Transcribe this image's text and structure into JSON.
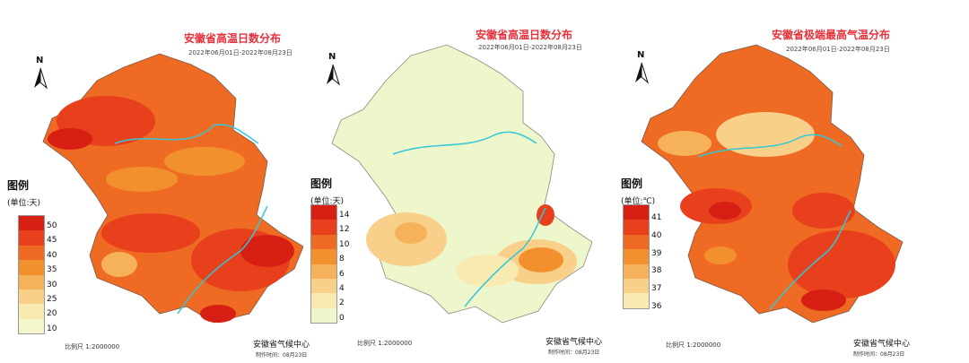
{
  "panels": [
    {
      "title": "安徽省高温日数分布",
      "date": "2022年06月01日-2022年08月23日",
      "legend_title": "图例",
      "unit": "(单位:天)",
      "ticks": [
        "50",
        "45",
        "40",
        "35",
        "30",
        "25",
        "20",
        "10"
      ],
      "colors": [
        "#d81f14",
        "#e8401c",
        "#ef6a22",
        "#f3902e",
        "#f6b25a",
        "#f8d08a",
        "#f8eab0",
        "#f5f6cc"
      ],
      "scale": "比例尺  1:2000000",
      "org": "安徽省气候中心",
      "made": "制作时间：08月23日"
    },
    {
      "title": "安徽省高温日数分布",
      "date": "2022年06月01日-2022年08月23日",
      "legend_title": "图例",
      "unit": "(单位:天)",
      "ticks": [
        "14",
        "12",
        "10",
        "8",
        "6",
        "4",
        "2",
        "0"
      ],
      "colors": [
        "#d81f14",
        "#e8401c",
        "#ef6a22",
        "#f3902e",
        "#f6b25a",
        "#f8d08a",
        "#f8eab0",
        "#eef6cc"
      ],
      "scale": "比例尺  1:2000000",
      "org": "安徽省气候中心",
      "made": "制作时间：08月23日"
    },
    {
      "title": "安徽省极端最高气温分布",
      "date": "2022年06月01日-2022年08月23日",
      "legend_title": "图例",
      "unit": "(单位:℃)",
      "ticks": [
        "41",
        "40",
        "39",
        "38",
        "37",
        "36"
      ],
      "colors": [
        "#d81f14",
        "#e8401c",
        "#ef6a22",
        "#f3902e",
        "#f6b25a",
        "#f8d08a",
        "#f8eab0"
      ],
      "scale": "比例尺  1:2000000",
      "org": "安徽省气候中心",
      "made": "制作时间：08月23日"
    }
  ],
  "north_label": "N"
}
